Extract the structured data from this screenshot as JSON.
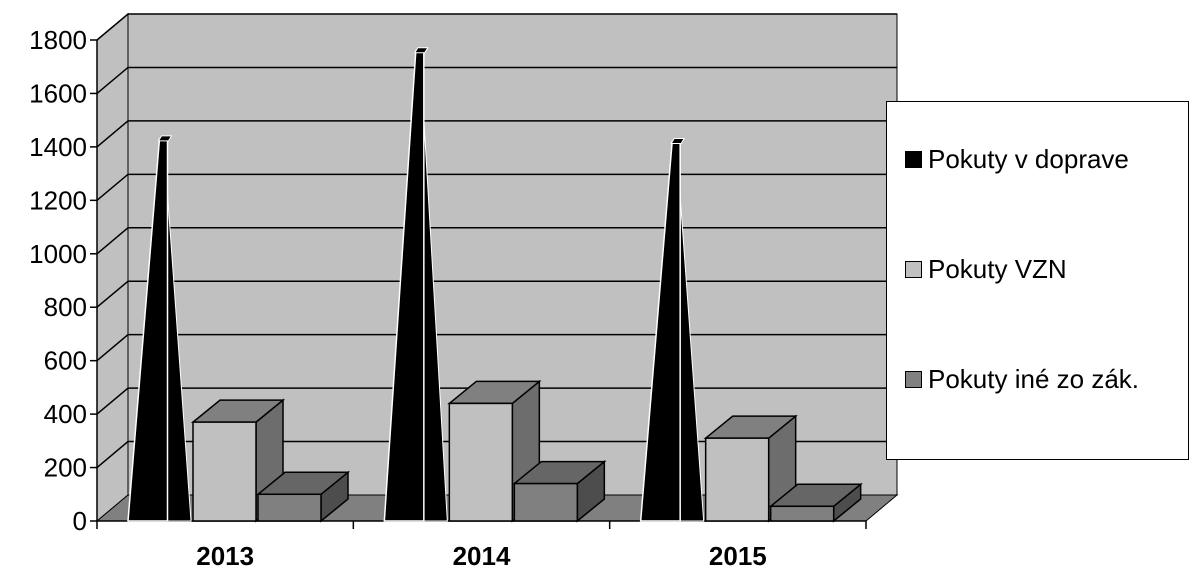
{
  "chart_data": {
    "type": "bar",
    "style": "3d-pyramid-and-column",
    "categories": [
      "2013",
      "2014",
      "2015"
    ],
    "series": [
      {
        "name": "Pokuty v doprave",
        "values": [
          1430,
          1760,
          1420
        ],
        "color": "#000000",
        "shape": "pyramid"
      },
      {
        "name": "Pokuty VZN",
        "values": [
          370,
          440,
          310
        ],
        "color": "#c0c0c0",
        "shape": "column"
      },
      {
        "name": "Pokuty iné zo zák.",
        "values": [
          100,
          140,
          55
        ],
        "color": "#808080",
        "shape": "column"
      }
    ],
    "ylim": [
      0,
      1800
    ],
    "yticks": [
      "0",
      "200",
      "400",
      "600",
      "800",
      "1000",
      "1200",
      "1400",
      "1600",
      "1800"
    ],
    "grid": true,
    "legend_position": "right",
    "colors": {
      "wall": "#c0c0c0",
      "floor": "#808080",
      "grid": "#000000"
    }
  }
}
